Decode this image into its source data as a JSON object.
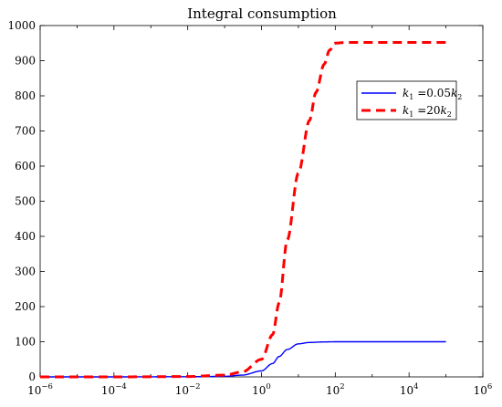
{
  "chart_data": {
    "type": "line",
    "title": "Integral consumption",
    "xlabel": "",
    "ylabel": "",
    "x_scale": "log",
    "xlim": [
      1e-06,
      1000000.0
    ],
    "ylim": [
      0,
      1000
    ],
    "x_ticks": [
      {
        "base": "10",
        "exp": "−6",
        "value": 1e-06
      },
      {
        "base": "10",
        "exp": "−4",
        "value": 0.0001
      },
      {
        "base": "10",
        "exp": "−2",
        "value": 0.01
      },
      {
        "base": "10",
        "exp": "0",
        "value": 1
      },
      {
        "base": "10",
        "exp": "2",
        "value": 100
      },
      {
        "base": "10",
        "exp": "4",
        "value": 10000
      },
      {
        "base": "10",
        "exp": "6",
        "value": 1000000
      }
    ],
    "y_ticks": [
      "0",
      "100",
      "200",
      "300",
      "400",
      "500",
      "600",
      "700",
      "800",
      "900",
      "1000"
    ],
    "grid": false,
    "legend_position": "top-right",
    "series": [
      {
        "name": "k1 =0.05k2",
        "legend": {
          "k": "k",
          "sub1": "1",
          "mid": " =0.05",
          "k2": "k",
          "sub2": "2"
        },
        "color": "#0000ff",
        "style": "solid",
        "x": [
          1e-06,
          0.0001,
          0.01,
          0.1,
          0.3,
          1,
          2,
          3,
          5,
          10,
          20,
          50,
          100,
          1000,
          100000.0
        ],
        "y": [
          0,
          0,
          0.5,
          1.5,
          5,
          17,
          38,
          58,
          78,
          94,
          98,
          99.5,
          100,
          100,
          100
        ]
      },
      {
        "name": "k1 =20k2",
        "legend": {
          "k": "k",
          "sub1": "1",
          "mid": " =20",
          "k2": "k",
          "sub2": "2"
        },
        "color": "#ff0000",
        "style": "dashed",
        "x": [
          1e-06,
          0.0001,
          0.01,
          0.1,
          0.3,
          1,
          2,
          3,
          5,
          10,
          20,
          30,
          50,
          70,
          100,
          200,
          1000,
          100000.0
        ],
        "y": [
          0,
          0,
          1,
          5,
          14,
          50,
          120,
          210,
          390,
          580,
          730,
          810,
          890,
          930,
          950,
          952,
          952,
          952
        ]
      }
    ]
  }
}
